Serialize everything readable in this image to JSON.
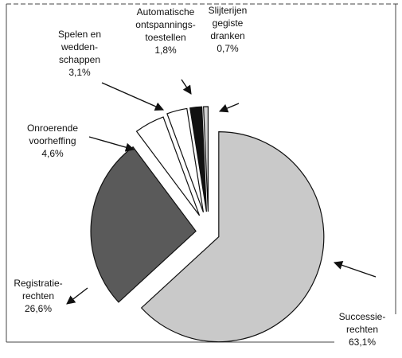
{
  "chart_data": {
    "type": "pie",
    "categories": [
      [
        "Successie-",
        "rechten"
      ],
      [
        "Registratie-",
        "rechten"
      ],
      [
        "Onroerende",
        "voorheffing"
      ],
      [
        "Spelen en",
        "wedden-",
        "schappen"
      ],
      [
        "Automatische",
        "ontspannings-",
        "toestellen"
      ],
      [
        "Slijterijen",
        "gegiste",
        "dranken"
      ]
    ],
    "values": [
      63.1,
      26.6,
      4.6,
      3.1,
      1.8,
      0.7
    ],
    "value_labels": [
      "63,1%",
      "26,6%",
      "4,6%",
      "3,1%",
      "1,8%",
      "0,7%"
    ],
    "colors": [
      "#c9c9c9",
      "#5a5a5a",
      "#ffffff",
      "#ffffff",
      "#111111",
      "#d4d4d4"
    ]
  }
}
